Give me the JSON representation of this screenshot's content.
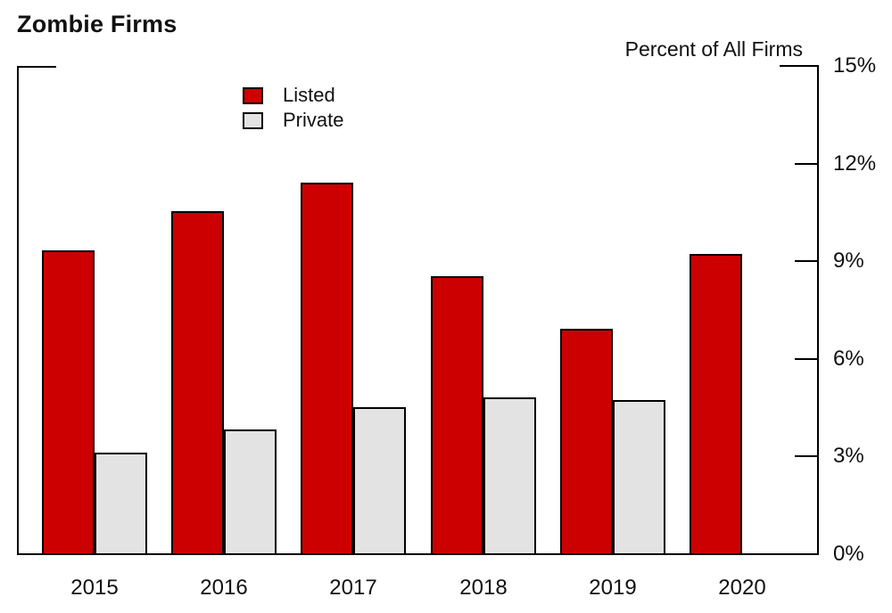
{
  "title": "Zombie Firms",
  "y_axis_title": "Percent of All Firms",
  "chart_data": {
    "type": "bar",
    "title": "Zombie Firms",
    "ylabel": "Percent of All Firms",
    "xlabel": "",
    "categories": [
      "2015",
      "2016",
      "2017",
      "2018",
      "2019",
      "2020"
    ],
    "series": [
      {
        "name": "Listed",
        "color": "#CC0000",
        "values": [
          9.3,
          10.5,
          11.4,
          8.5,
          6.9,
          9.2
        ]
      },
      {
        "name": "Private",
        "color": "#E3E3E3",
        "values": [
          3.1,
          3.8,
          4.5,
          4.8,
          4.7,
          null
        ]
      }
    ],
    "ylim": [
      0,
      15
    ],
    "ytick_values": [
      0,
      3,
      6,
      9,
      12,
      15
    ],
    "yticks": [
      "0%",
      "3%",
      "6%",
      "9%",
      "12%",
      "15%"
    ],
    "legend_position": "top-left-inside",
    "grid": false,
    "axis_color": "#000000",
    "bar_border_color": "#000000"
  }
}
